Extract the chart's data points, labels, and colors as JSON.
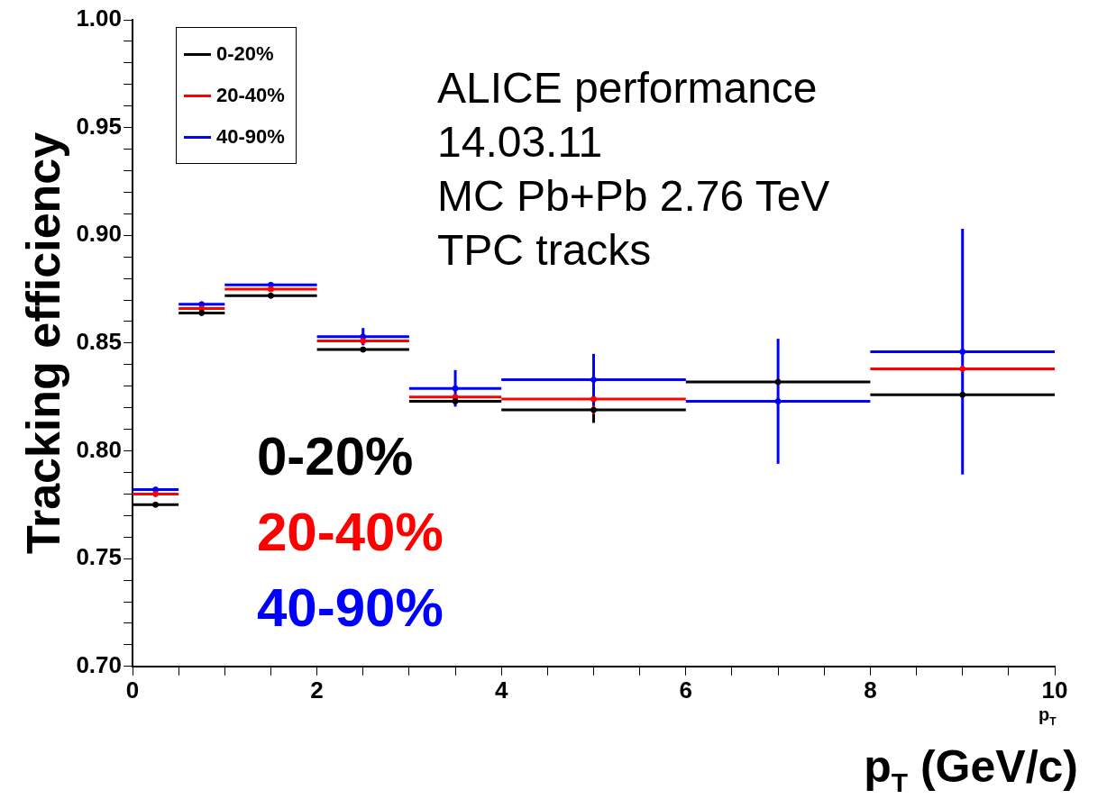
{
  "chart_data": {
    "type": "scatter",
    "marker": "circle",
    "x": [
      0.25,
      0.75,
      1.5,
      2.5,
      3.5,
      5,
      7,
      9
    ],
    "xlabel": "p$_{T}$ (GeV/c)",
    "ylabel": "Tracking efficiency",
    "series": [
      {
        "name": "0-20%",
        "color": "#000000",
        "values": [
          0.775,
          0.864,
          0.872,
          0.847,
          0.823,
          0.819,
          0.832,
          0.826
        ],
        "xerrors": [
          0.25,
          0.25,
          0.5,
          0.5,
          0.5,
          1,
          1,
          1
        ],
        "errors": [
          null,
          null,
          null,
          null,
          null,
          0.006,
          null,
          null
        ]
      },
      {
        "name": "20-40%",
        "color": "#ff0000",
        "values": [
          0.78,
          0.866,
          0.875,
          0.851,
          0.825,
          0.824,
          null,
          0.838
        ],
        "xerrors": [
          0.25,
          0.25,
          0.5,
          0.5,
          0.5,
          1,
          null,
          1
        ],
        "errors": [
          null,
          null,
          null,
          null,
          null,
          0.007,
          null,
          null
        ]
      },
      {
        "name": "40-90%",
        "color": "#0000ff",
        "values": [
          0.782,
          0.868,
          0.877,
          0.853,
          0.829,
          0.833,
          0.823,
          0.846
        ],
        "xerrors": [
          0.25,
          0.25,
          0.5,
          0.5,
          0.5,
          1,
          1,
          1
        ],
        "errors": [
          null,
          null,
          null,
          0.004,
          0.0085,
          0.012,
          0.029,
          0.057
        ]
      }
    ],
    "xlim": [
      0,
      10
    ],
    "ylim": [
      0.7,
      1.0
    ],
    "xticks": [
      0,
      {
        "value": 0.5,
        "label": null
      },
      {
        "value": 1,
        "label": null
      },
      {
        "value": 1.5,
        "label": null
      },
      2,
      {
        "value": 2.5,
        "label": null
      },
      {
        "value": 3,
        "label": null
      },
      {
        "value": 3.5,
        "label": null
      },
      4,
      {
        "value": 4.5,
        "label": null
      },
      {
        "value": 5,
        "label": null
      },
      {
        "value": 5.5,
        "label": null
      },
      6,
      {
        "value": 6.5,
        "label": null
      },
      {
        "value": 7,
        "label": null
      },
      {
        "value": 7.5,
        "label": null
      },
      8,
      {
        "value": 8.5,
        "label": null
      },
      {
        "value": 9,
        "label": null
      },
      {
        "value": 9.5,
        "label": null
      },
      10
    ],
    "yticks": [
      {
        "value": 0.7,
        "label": "0.70"
      },
      {
        "value": 0.71,
        "label": null
      },
      {
        "value": 0.72,
        "label": null
      },
      {
        "value": 0.73,
        "label": null
      },
      {
        "value": 0.74,
        "label": null
      },
      {
        "value": 0.75,
        "label": "0.75"
      },
      {
        "value": 0.76,
        "label": null
      },
      {
        "value": 0.77,
        "label": null
      },
      {
        "value": 0.78,
        "label": null
      },
      {
        "value": 0.79,
        "label": null
      },
      {
        "value": 0.8,
        "label": "0.80"
      },
      {
        "value": 0.81,
        "label": null
      },
      {
        "value": 0.82,
        "label": null
      },
      {
        "value": 0.83,
        "label": null
      },
      {
        "value": 0.84,
        "label": null
      },
      {
        "value": 0.85,
        "label": "0.85"
      },
      {
        "value": 0.86,
        "label": null
      },
      {
        "value": 0.87,
        "label": null
      },
      {
        "value": 0.88,
        "label": null
      },
      {
        "value": 0.89,
        "label": null
      },
      {
        "value": 0.9,
        "label": "0.90"
      },
      {
        "value": 0.91,
        "label": null
      },
      {
        "value": 0.92,
        "label": null
      },
      {
        "value": 0.93,
        "label": null
      },
      {
        "value": 0.94,
        "label": null
      },
      {
        "value": 0.95,
        "label": "0.95"
      },
      {
        "value": 0.96,
        "label": null
      },
      {
        "value": 0.97,
        "label": null
      },
      {
        "value": 0.98,
        "label": null
      },
      {
        "value": 0.99,
        "label": null
      },
      {
        "value": 1.0,
        "label": "1.00"
      }
    ],
    "legend": "top left",
    "grid": false,
    "annotations": [
      "ALICE performance",
      "14.03.11",
      "MC Pb+Pb 2.76 TeV",
      "TPC tracks",
      "p$_{T}$"
    ]
  }
}
